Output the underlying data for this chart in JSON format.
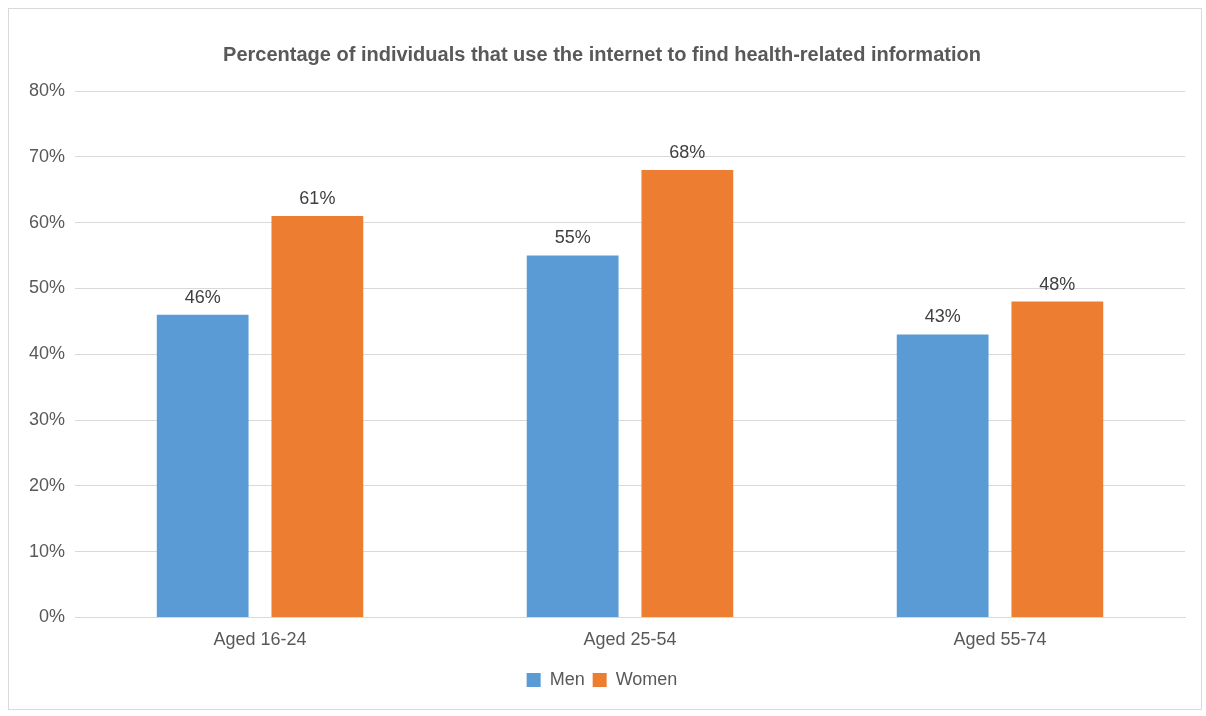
{
  "chart_data": {
    "type": "bar",
    "title": "Percentage of individuals that use the internet to find health-related information",
    "categories": [
      "Aged 16-24",
      "Aged 25-54",
      "Aged 55-74"
    ],
    "series": [
      {
        "name": "Men",
        "color": "#5b9bd5",
        "values": [
          46,
          55,
          43
        ],
        "value_labels": [
          "46%",
          "55%",
          "43%"
        ]
      },
      {
        "name": "Women",
        "color": "#ed7d31",
        "values": [
          61,
          68,
          48
        ],
        "value_labels": [
          "61%",
          "68%",
          "48%"
        ]
      }
    ],
    "ylim": [
      0,
      80
    ],
    "yticks": [
      {
        "value": 0,
        "label": "0%"
      },
      {
        "value": 10,
        "label": "10%"
      },
      {
        "value": 20,
        "label": "20%"
      },
      {
        "value": 30,
        "label": "30%"
      },
      {
        "value": 40,
        "label": "40%"
      },
      {
        "value": 50,
        "label": "50%"
      },
      {
        "value": 60,
        "label": "60%"
      },
      {
        "value": 70,
        "label": "70%"
      },
      {
        "value": 80,
        "label": "80%"
      }
    ],
    "grid": "y",
    "legend": "bottom"
  }
}
